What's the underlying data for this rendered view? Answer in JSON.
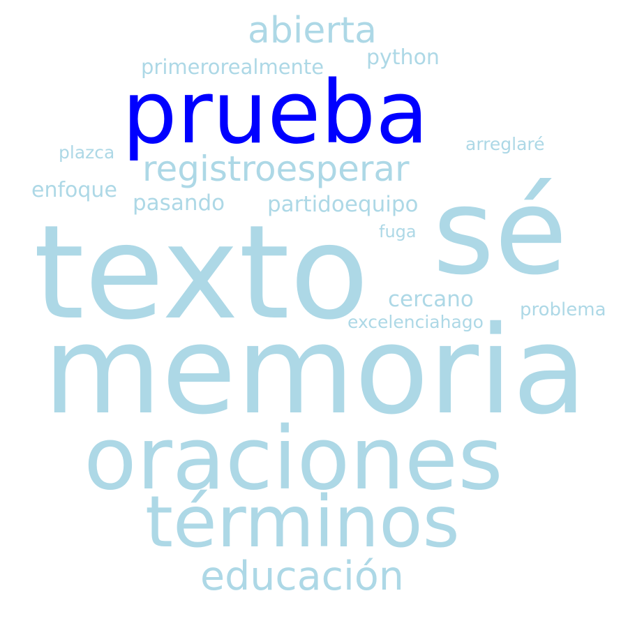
{
  "colors": {
    "background": "#ffffff",
    "word": "#add8e6",
    "highlight": "#0000ff"
  },
  "words": [
    {
      "text": "abierta"
    },
    {
      "text": "python"
    },
    {
      "text": "primerorealmente"
    },
    {
      "text": "prueba",
      "highlighted": true
    },
    {
      "text": "arreglaré"
    },
    {
      "text": "plazca"
    },
    {
      "text": "registroesperar"
    },
    {
      "text": "enfoque"
    },
    {
      "text": "pasando"
    },
    {
      "text": "partidoequipo"
    },
    {
      "text": "sé"
    },
    {
      "text": "fuga"
    },
    {
      "text": "texto"
    },
    {
      "text": "cercano"
    },
    {
      "text": "problema"
    },
    {
      "text": "excelenciahago"
    },
    {
      "text": "memoria"
    },
    {
      "text": "oraciones"
    },
    {
      "text": "términos"
    },
    {
      "text": "educación"
    }
  ]
}
